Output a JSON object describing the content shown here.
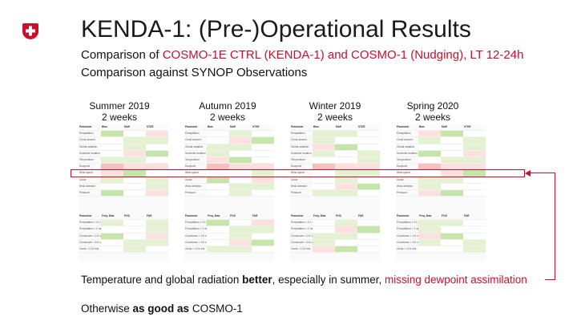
{
  "header": {
    "title": "KENDA-1: (Pre-)Operational Results",
    "subtitle_line1": {
      "pre": "Comparison of ",
      "highlight": "COSMO-1E CTRL (KENDA-1) and COSMO-1 (Nudging), LT 12-24h"
    },
    "subtitle_line2": "Comparison against SYNOP Observations"
  },
  "logo": {
    "icon": "swiss-cross-icon",
    "color": "#c8102e"
  },
  "seasons": [
    {
      "name": "Summer 2019",
      "period": "2 weeks"
    },
    {
      "name": "Autumn 2019",
      "period": "2 weeks"
    },
    {
      "name": "Winter 2019",
      "period": "2 weeks"
    },
    {
      "name": "Spring 2020",
      "period": "2 weeks"
    }
  ],
  "tables": {
    "header": [
      "Parameter",
      "Bias",
      "MAE",
      "STDE"
    ],
    "rows": [
      "Precipitation",
      "Cloud amount",
      "Global radiation",
      "Sunshine duration",
      "Temperature",
      "Dewpoint",
      "Wind speed",
      "Gusts",
      "Wind direction",
      "Pressure"
    ],
    "header2": [
      "Parameter",
      "Freq. Bias",
      "POD",
      "FAR"
    ],
    "rows2": [
      "Precipitation > 0.1 mm/6h",
      "Precipitation > 2 mm/6h",
      "Cloudcover < 2.5 okta",
      "Cloudcover > 6.5 okta",
      "Gusts > 12.5 m/s"
    ],
    "cell_colors": {
      "better": "#c6e5a8",
      "slightly_better": "#e4f2d2",
      "worse": "#f6c1bd",
      "slightly_worse": "#fbe0dd",
      "similar": "#ffffff"
    }
  },
  "bottom": {
    "line1": {
      "pre": "Temperature and global radiation ",
      "bold": "better",
      "mid": ", especially in summer, ",
      "red": "missing dewpoint assimilation"
    },
    "line2": {
      "pre": "Otherwise ",
      "bold": "as good as",
      "post": " COSMO-1"
    }
  },
  "accent_color": "#c8102e"
}
